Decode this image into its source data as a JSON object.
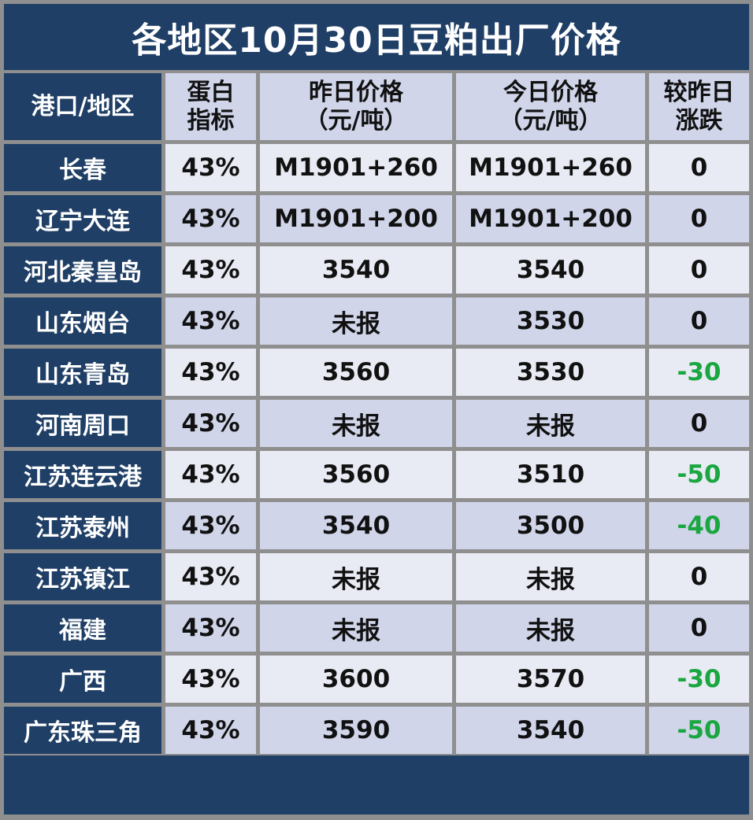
{
  "title": "各地区10月30日豆粕出厂价格",
  "headers": {
    "region": "港口/地区",
    "protein_line1": "蛋白",
    "protein_line2": "指标",
    "yesterday_line1": "昨日价格",
    "yesterday_line2": "（元/吨）",
    "today_line1": "今日价格",
    "today_line2": "（元/吨）",
    "change_line1": "较昨日",
    "change_line2": "涨跌"
  },
  "rows": [
    {
      "region": "长春",
      "protein": "43%",
      "yesterday": "M1901+260",
      "today": "M1901+260",
      "change": "0",
      "trend": "flat"
    },
    {
      "region": "辽宁大连",
      "protein": "43%",
      "yesterday": "M1901+200",
      "today": "M1901+200",
      "change": "0",
      "trend": "flat"
    },
    {
      "region": "河北秦皇岛",
      "protein": "43%",
      "yesterday": "3540",
      "today": "3540",
      "change": "0",
      "trend": "flat"
    },
    {
      "region": "山东烟台",
      "protein": "43%",
      "yesterday": "未报",
      "today": "3530",
      "change": "0",
      "trend": "flat"
    },
    {
      "region": "山东青岛",
      "protein": "43%",
      "yesterday": "3560",
      "today": "3530",
      "change": "-30",
      "trend": "down"
    },
    {
      "region": "河南周口",
      "protein": "43%",
      "yesterday": "未报",
      "today": "未报",
      "change": "0",
      "trend": "flat"
    },
    {
      "region": "江苏连云港",
      "protein": "43%",
      "yesterday": "3560",
      "today": "3510",
      "change": "-50",
      "trend": "down"
    },
    {
      "region": "江苏泰州",
      "protein": "43%",
      "yesterday": "3540",
      "today": "3500",
      "change": "-40",
      "trend": "down"
    },
    {
      "region": "江苏镇江",
      "protein": "43%",
      "yesterday": "未报",
      "today": "未报",
      "change": "0",
      "trend": "flat"
    },
    {
      "region": "福建",
      "protein": "43%",
      "yesterday": "未报",
      "today": "未报",
      "change": "0",
      "trend": "flat"
    },
    {
      "region": "广西",
      "protein": "43%",
      "yesterday": "3600",
      "today": "3570",
      "change": "-30",
      "trend": "down"
    },
    {
      "region": "广东珠三角",
      "protein": "43%",
      "yesterday": "3590",
      "today": "3540",
      "change": "-50",
      "trend": "down"
    }
  ],
  "colors": {
    "header_navy": "#1f3f66",
    "row_light": "#e9ebf4",
    "row_lavender": "#d0d5ea",
    "decrease_green": "#1aa640"
  }
}
